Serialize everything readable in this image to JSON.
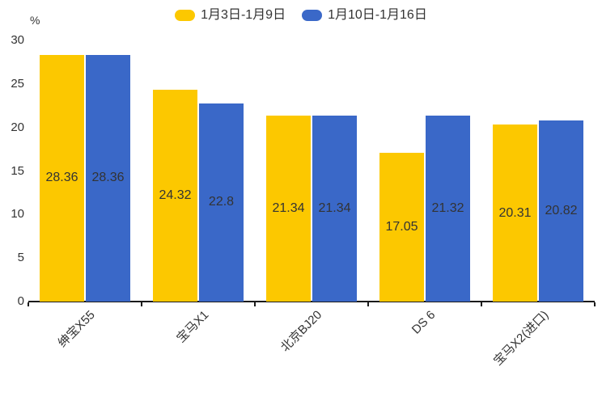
{
  "chart_data": {
    "type": "bar",
    "unit_label": "%",
    "categories": [
      "绅宝X55",
      "宝马X1",
      "北京BJ20",
      "DS 6",
      "宝马X2(进口)"
    ],
    "series": [
      {
        "name": "1月3日-1月9日",
        "color": "#fcc800",
        "values": [
          28.36,
          24.32,
          21.34,
          17.05,
          20.31
        ]
      },
      {
        "name": "1月10日-1月16日",
        "color": "#3a68c8",
        "values": [
          28.36,
          22.8,
          21.34,
          21.32,
          20.82
        ]
      }
    ],
    "value_labels": [
      "28.36",
      "24.32",
      "21.34",
      "17.05",
      "20.31",
      "28.36",
      "22.8",
      "21.34",
      "21.32",
      "20.82"
    ],
    "y_ticks": [
      0,
      5,
      10,
      15,
      20,
      25,
      30
    ],
    "ylim": [
      0,
      30
    ],
    "grid": false,
    "legend_position": "top-center",
    "value_label_position": "inside-middle"
  },
  "colors": {
    "text": "#333333",
    "axis": "#1a1a1a",
    "background": "#ffffff"
  }
}
